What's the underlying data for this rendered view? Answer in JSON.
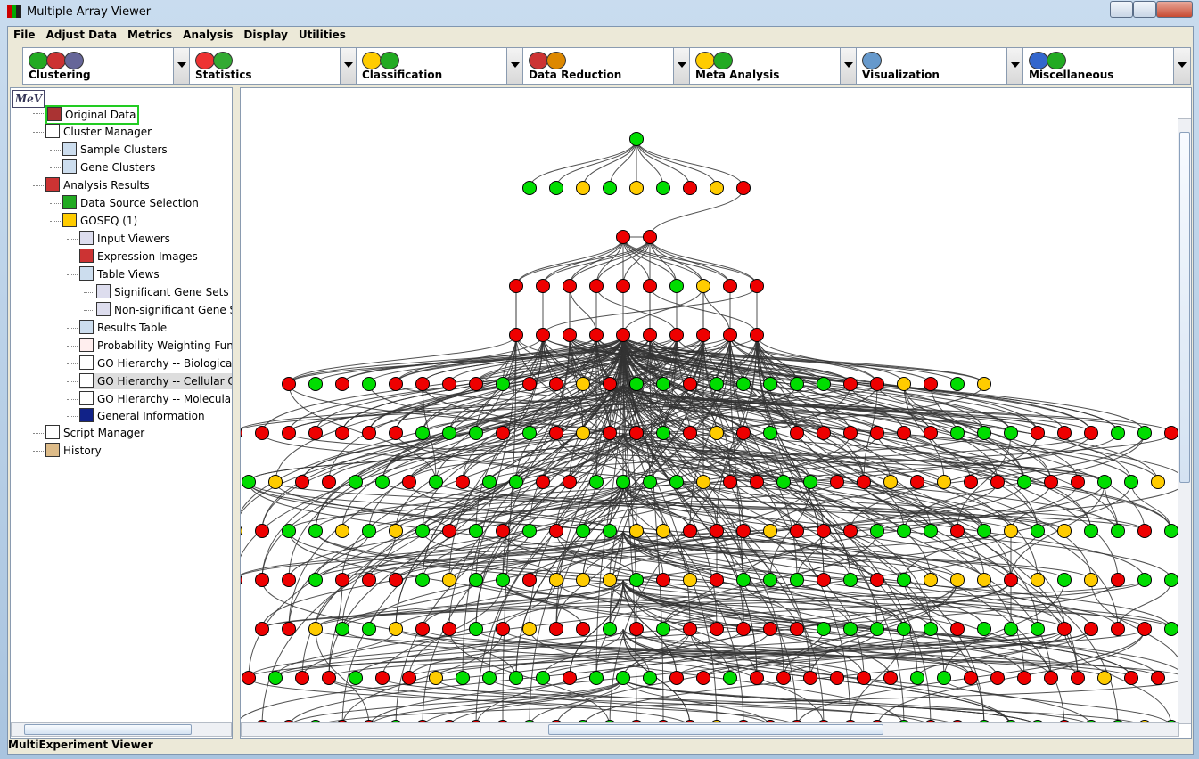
{
  "window": {
    "title": "Multiple Array Viewer"
  },
  "menu": [
    "File",
    "Adjust Data",
    "Metrics",
    "Analysis",
    "Display",
    "Utilities"
  ],
  "toolbar": [
    "Clustering",
    "Statistics",
    "Classification",
    "Data Reduction",
    "Meta Analysis",
    "Visualization",
    "Miscellaneous"
  ],
  "tree": {
    "logo": "MeV",
    "items": [
      "Original Data",
      "Cluster Manager",
      "Sample Clusters",
      "Gene Clusters",
      "Analysis Results",
      "Data Source Selection",
      "GOSEQ (1)",
      "Input Viewers",
      "Expression Images",
      "Table Views",
      "Significant Gene Sets",
      "Non-significant Gene Sets",
      "Results Table",
      "Probability Weighting Function",
      "GO Hierarchy -- Biological Proc",
      "GO Hierarchy -- Cellular Comp",
      "GO Hierarchy -- Molecular Fun",
      "General Information",
      "Script Manager",
      "History"
    ]
  },
  "status": "MultiExperiment Viewer"
}
